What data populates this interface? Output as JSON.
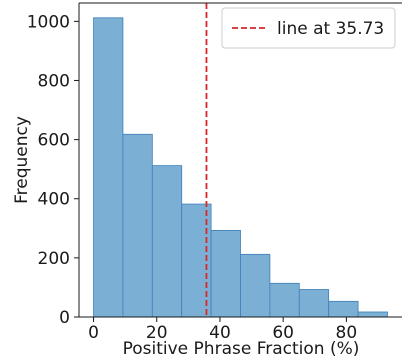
{
  "chart_data": {
    "type": "bar",
    "bins": [
      {
        "x0": 0,
        "x1": 9.3,
        "count": 1012
      },
      {
        "x0": 9.3,
        "x1": 18.6,
        "count": 618
      },
      {
        "x0": 18.6,
        "x1": 27.9,
        "count": 512
      },
      {
        "x0": 27.9,
        "x1": 37.2,
        "count": 382
      },
      {
        "x0": 37.2,
        "x1": 46.5,
        "count": 293
      },
      {
        "x0": 46.5,
        "x1": 55.8,
        "count": 212
      },
      {
        "x0": 55.8,
        "x1": 65.1,
        "count": 114
      },
      {
        "x0": 65.1,
        "x1": 74.4,
        "count": 93
      },
      {
        "x0": 74.4,
        "x1": 83.7,
        "count": 53
      },
      {
        "x0": 83.7,
        "x1": 93.0,
        "count": 17
      }
    ],
    "xlabel": "Positive Phrase Fraction (%)",
    "ylabel": "Frequency",
    "xlim": [
      -4.6,
      97.6
    ],
    "ylim": [
      0,
      1062
    ],
    "xticks": [
      0,
      20,
      40,
      60,
      80
    ],
    "yticks": [
      0,
      200,
      400,
      600,
      800,
      1000
    ],
    "vline": {
      "x": 35.73,
      "label": "line at 35.73",
      "color": "#d62728"
    },
    "bar_color": "#7bafd4",
    "bar_edge_color": "#3f7fb8",
    "grid": false,
    "legend_position": "top-right"
  }
}
